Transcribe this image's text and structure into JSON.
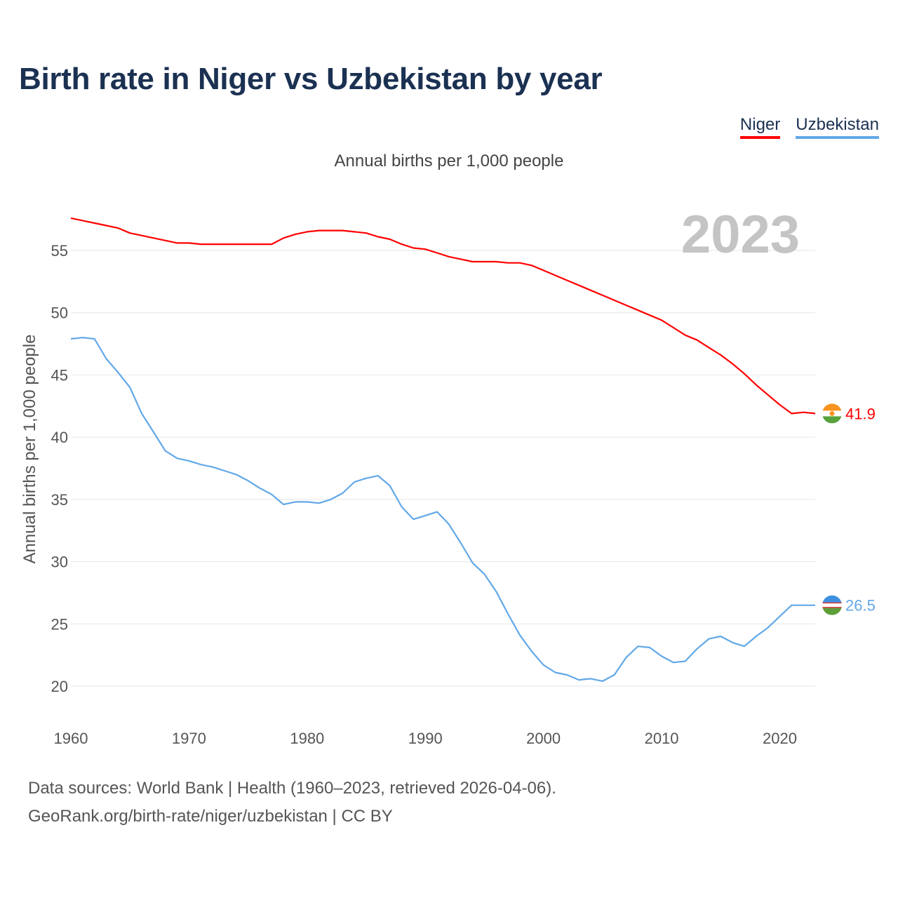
{
  "title": "Birth rate in Niger vs Uzbekistan by year",
  "legend": {
    "niger": "Niger",
    "uzbekistan": "Uzbekistan"
  },
  "subtitle": "Annual births per 1,000 people",
  "footer": {
    "line1": "Data sources: World Bank | Health (1960–2023, retrieved 2026-04-06).",
    "line2": "GeoRank.org/birth-rate/niger/uzbekistan | CC BY"
  },
  "colors": {
    "niger": "#ff0000",
    "uzbekistan": "#62a8e8",
    "grid": "#e6e6e6",
    "year": "#c4c4c4"
  },
  "chart_data": {
    "type": "line",
    "title": "Birth rate in Niger vs Uzbekistan by year",
    "ylabel": "Annual births per 1,000 people",
    "xlabel": "",
    "year_label": "2023",
    "xlim": [
      1960,
      2023
    ],
    "ylim": [
      18,
      59
    ],
    "yticks": [
      20,
      25,
      30,
      35,
      40,
      45,
      50,
      55
    ],
    "xticks": [
      1960,
      1970,
      1980,
      1990,
      2000,
      2010,
      2020
    ],
    "grid": true,
    "legend_position": "top-right",
    "series": [
      {
        "name": "Niger",
        "end_label": "41.9",
        "flag": "niger-flag-icon",
        "x": [
          1960,
          1961,
          1962,
          1963,
          1964,
          1965,
          1966,
          1967,
          1968,
          1969,
          1970,
          1971,
          1972,
          1973,
          1974,
          1975,
          1976,
          1977,
          1978,
          1979,
          1980,
          1981,
          1982,
          1983,
          1984,
          1985,
          1986,
          1987,
          1988,
          1989,
          1990,
          1991,
          1992,
          1993,
          1994,
          1995,
          1996,
          1997,
          1998,
          1999,
          2000,
          2001,
          2002,
          2003,
          2004,
          2005,
          2006,
          2007,
          2008,
          2009,
          2010,
          2011,
          2012,
          2013,
          2014,
          2015,
          2016,
          2017,
          2018,
          2019,
          2020,
          2021,
          2022,
          2023
        ],
        "values": [
          57.6,
          57.4,
          57.2,
          57.0,
          56.8,
          56.4,
          56.2,
          56.0,
          55.8,
          55.6,
          55.6,
          55.5,
          55.5,
          55.5,
          55.5,
          55.5,
          55.5,
          55.5,
          56.0,
          56.3,
          56.5,
          56.6,
          56.6,
          56.6,
          56.5,
          56.4,
          56.1,
          55.9,
          55.5,
          55.2,
          55.1,
          54.8,
          54.5,
          54.3,
          54.1,
          54.1,
          54.1,
          54.0,
          54.0,
          53.8,
          53.4,
          53.0,
          52.6,
          52.2,
          51.8,
          51.4,
          51.0,
          50.6,
          50.2,
          49.8,
          49.4,
          48.8,
          48.2,
          47.8,
          47.2,
          46.6,
          45.9,
          45.1,
          44.2,
          43.4,
          42.6,
          41.9,
          42.0,
          41.9
        ]
      },
      {
        "name": "Uzbekistan",
        "end_label": "26.5",
        "flag": "uzbekistan-flag-icon",
        "x": [
          1960,
          1961,
          1962,
          1963,
          1964,
          1965,
          1966,
          1967,
          1968,
          1969,
          1970,
          1971,
          1972,
          1973,
          1974,
          1975,
          1976,
          1977,
          1978,
          1979,
          1980,
          1981,
          1982,
          1983,
          1984,
          1985,
          1986,
          1987,
          1988,
          1989,
          1990,
          1991,
          1992,
          1993,
          1994,
          1995,
          1996,
          1997,
          1998,
          1999,
          2000,
          2001,
          2002,
          2003,
          2004,
          2005,
          2006,
          2007,
          2008,
          2009,
          2010,
          2011,
          2012,
          2013,
          2014,
          2015,
          2016,
          2017,
          2018,
          2019,
          2020,
          2021,
          2022,
          2023
        ],
        "values": [
          47.9,
          48.0,
          47.9,
          46.3,
          45.2,
          44.0,
          41.9,
          40.4,
          38.9,
          38.3,
          38.1,
          37.8,
          37.6,
          37.3,
          37.0,
          36.5,
          35.9,
          35.4,
          34.6,
          34.8,
          34.8,
          34.7,
          35.0,
          35.5,
          36.4,
          36.7,
          36.9,
          36.1,
          34.4,
          33.4,
          33.7,
          34.0,
          33.0,
          31.5,
          29.9,
          29.0,
          27.6,
          25.8,
          24.1,
          22.8,
          21.7,
          21.1,
          20.9,
          20.5,
          20.6,
          20.4,
          20.9,
          22.3,
          23.2,
          23.1,
          22.4,
          21.9,
          22.0,
          23.0,
          23.8,
          24.0,
          23.5,
          23.2,
          24.0,
          24.7,
          25.6,
          26.5,
          26.5,
          26.5
        ]
      }
    ]
  }
}
